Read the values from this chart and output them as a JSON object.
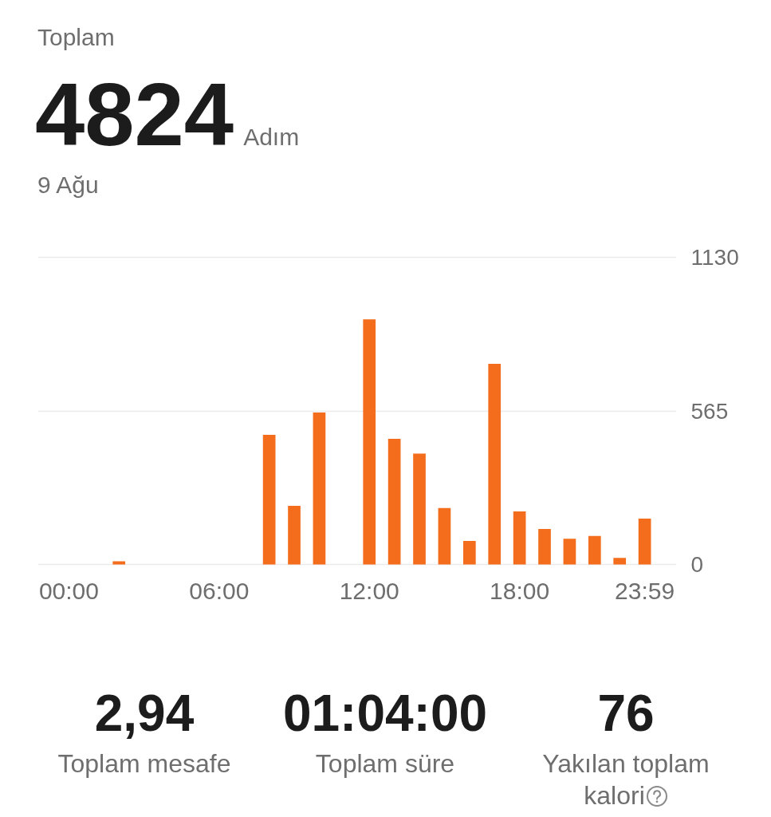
{
  "chart_data": {
    "type": "bar",
    "title": "Toplam",
    "annotations": [
      "4824",
      "Adım",
      "9 Ağu",
      "2,94",
      "Toplam mesafe",
      "01:04:00",
      "Toplam süre",
      "76",
      "Yakılan toplam kalori"
    ],
    "categories": [
      "00:00",
      null,
      null,
      null,
      null,
      null,
      "06:00",
      null,
      null,
      null,
      null,
      null,
      "12:00",
      null,
      null,
      null,
      null,
      null,
      "18:00",
      null,
      null,
      null,
      null,
      "23:59"
    ],
    "values": [
      null,
      null,
      12,
      null,
      null,
      null,
      null,
      null,
      477,
      216,
      559,
      null,
      902,
      462,
      408,
      208,
      87,
      738,
      195,
      131,
      95,
      105,
      24,
      169
    ],
    "color": "#f36d1c",
    "ylim": [
      0,
      1130
    ],
    "yticks": [
      0,
      565,
      1130
    ],
    "grid": "y"
  }
}
